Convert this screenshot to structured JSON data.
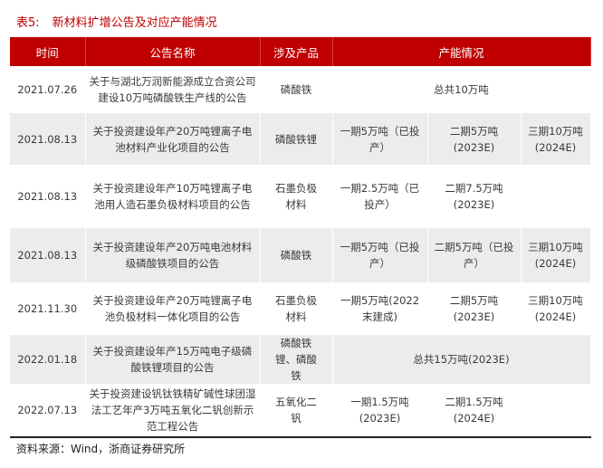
{
  "title": {
    "label": "表5:",
    "text": "新材料扩增公告及对应产能情况"
  },
  "headers": [
    "时间",
    "公告名称",
    "涉及产品",
    "产能情况"
  ],
  "rows": [
    {
      "date": "2021.07.26",
      "name": "关于与湖北万润新能源成立合资公司建设10万吨磷酸铁生产线的公告",
      "product": "磷酸铁",
      "capacity": [
        "总共10万吨"
      ]
    },
    {
      "date": "2021.08.13",
      "name": "关于投资建设年产20万吨锂离子电池材料产业化项目的公告",
      "product": "磷酸铁锂",
      "capacity": [
        "一期5万吨（已投产）",
        "二期5万吨(2023E)",
        "三期10万吨(2024E)"
      ]
    },
    {
      "date": "2021.08.13",
      "name": "关于投资建设年产10万吨锂离子电池用人造石墨负极材料项目的公告",
      "product": "石墨负极材料",
      "capacity": [
        "一期2.5万吨（已投产）",
        "二期7.5万吨(2023E)",
        ""
      ]
    },
    {
      "date": "2021.08.13",
      "name": "关于投资建设年产20万吨电池材料级磷酸铁项目的公告",
      "product": "磷酸铁",
      "capacity": [
        "一期5万吨（已投产）",
        "二期5万吨（已投产）",
        "三期10万吨(2024E)"
      ]
    },
    {
      "date": "2021.11.30",
      "name": "关于投资建设年产20万吨锂离子电池负极材料一体化项目的公告",
      "product": "石墨负极材料",
      "capacity": [
        "一期5万吨(2022末建成)",
        "二期5万吨(2023E)",
        "三期10万吨(2024E)"
      ]
    },
    {
      "date": "2022.01.18",
      "name": "关于投资建设年产15万吨电子级磷酸铁锂项目的公告",
      "product": "磷酸铁锂、磷酸铁",
      "capacity": [
        "总共15万吨(2023E)"
      ]
    },
    {
      "date": "2022.07.13",
      "name": "关于投资建设钒钛铁精矿碱性球团湿法工艺年产3万吨五氧化二钒创新示范工程公告",
      "product": "五氧化二钒",
      "capacity": [
        "一期1.5万吨(2023E)",
        "二期1.5万吨(2024E)",
        ""
      ]
    }
  ],
  "source": "资料来源：Wind，浙商证券研究所",
  "colors": {
    "accent": "#c00000",
    "stripe": "#ececec"
  }
}
